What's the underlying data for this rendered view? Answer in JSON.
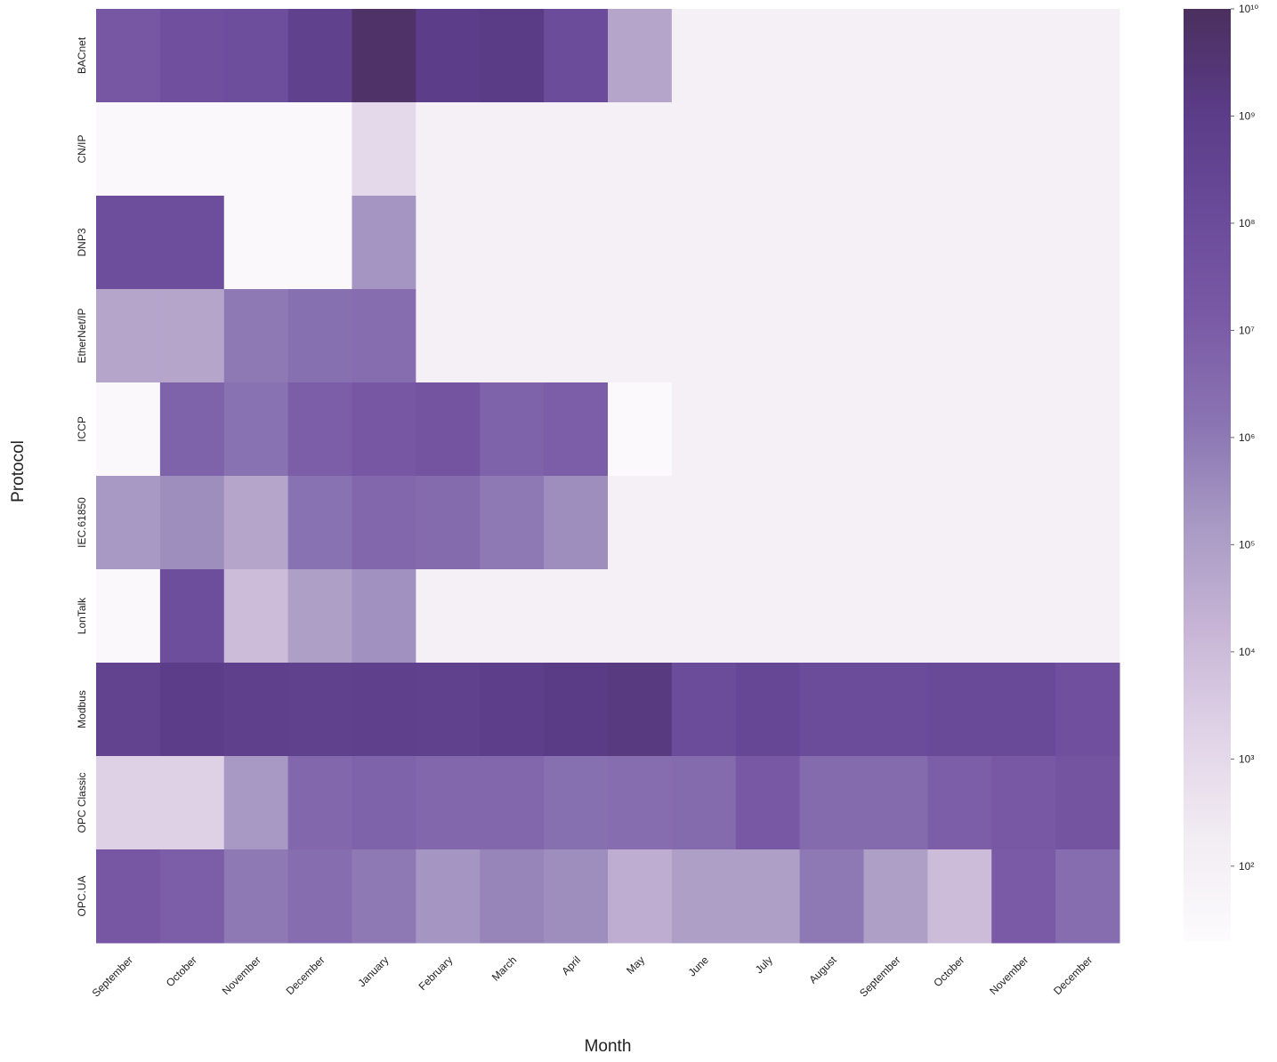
{
  "chart_data": {
    "type": "heatmap",
    "xlabel": "Month",
    "ylabel": "Protocol",
    "x": [
      "September",
      "October",
      "November",
      "December",
      "January",
      "February",
      "March",
      "April",
      "May",
      "June",
      "July",
      "August",
      "September",
      "October",
      "November",
      "December"
    ],
    "y": [
      "BACnet",
      "CN/IP",
      "DNP3",
      "EtherNet/IP",
      "ICCP",
      "IEC.61850",
      "LonTalk",
      "Modbus",
      "OPC Classic",
      "OPC.UA"
    ],
    "values": [
      [
        20000000.0,
        60000000.0,
        80000000.0,
        500000000.0,
        6000000000.0,
        1000000000.0,
        1300000000.0,
        100000000.0,
        60000.0,
        100,
        100,
        100,
        100,
        100,
        100,
        100
      ],
      [
        30,
        30,
        30,
        30,
        1000.0,
        100,
        100,
        100,
        100,
        100,
        100,
        100,
        100,
        100,
        100,
        100
      ],
      [
        80000000.0,
        80000000.0,
        30,
        30,
        200000.0,
        100,
        100,
        100,
        100,
        100,
        100,
        100,
        100,
        100,
        100,
        100
      ],
      [
        60000.0,
        60000.0,
        1000000.0,
        2000000.0,
        2500000.0,
        100,
        100,
        100,
        100,
        100,
        100,
        100,
        100,
        100,
        100,
        100
      ],
      [
        30,
        6000000.0,
        1600000.0,
        10000000.0,
        20000000.0,
        30000000.0,
        6000000.0,
        10000000.0,
        25,
        100,
        100,
        100,
        100,
        100,
        100,
        100
      ],
      [
        160000.0,
        300000.0,
        60000.0,
        1600000.0,
        4000000.0,
        3000000.0,
        1000000.0,
        300000.0,
        100,
        100,
        100,
        100,
        100,
        100,
        100,
        100
      ],
      [
        30,
        80000000.0,
        10000.0,
        100000.0,
        250000.0,
        100,
        100,
        100,
        100,
        100,
        100,
        100,
        100,
        100,
        100,
        100
      ],
      [
        400000000.0,
        1000000000.0,
        600000000.0,
        500000000.0,
        600000000.0,
        500000000.0,
        800000000.0,
        1300000000.0,
        1600000000.0,
        100000000.0,
        200000000.0,
        100000000.0,
        100000000.0,
        130000000.0,
        130000000.0,
        60000000.0
      ],
      [
        2000.0,
        2000.0,
        160000.0,
        4000000.0,
        6000000.0,
        4000000.0,
        4000000.0,
        2000000.0,
        2500000.0,
        3000000.0,
        16000000.0,
        3000000.0,
        3000000.0,
        10000000.0,
        16000000.0,
        30000000.0
      ],
      [
        20000000.0,
        10000000.0,
        1000000.0,
        2500000.0,
        1000000.0,
        200000.0,
        500000.0,
        300000.0,
        30000.0,
        100000.0,
        100000.0,
        1000000.0,
        100000.0,
        10000.0,
        13000000.0,
        2500000.0
      ]
    ],
    "zscale": "log",
    "zlim": [
      20,
      10000000000
    ],
    "zticks": [
      {
        "value": 100,
        "label": "10²"
      },
      {
        "value": 1000,
        "label": "10³"
      },
      {
        "value": 10000,
        "label": "10⁴"
      },
      {
        "value": 100000,
        "label": "10⁵"
      },
      {
        "value": 1000000,
        "label": "10⁶"
      },
      {
        "value": 10000000,
        "label": "10⁷"
      },
      {
        "value": 100000000,
        "label": "10⁸"
      },
      {
        "value": 1000000000,
        "label": "10⁹"
      },
      {
        "value": 10000000000,
        "label": "10¹⁰"
      }
    ],
    "colorscale": [
      "#fcfbfd",
      "#f2ecf3",
      "#e0d3e7",
      "#c8b5d6",
      "#a89ac4",
      "#8a74b2",
      "#7a5aa6",
      "#6a4b9a",
      "#5b3c88",
      "#4b2f5e"
    ]
  }
}
